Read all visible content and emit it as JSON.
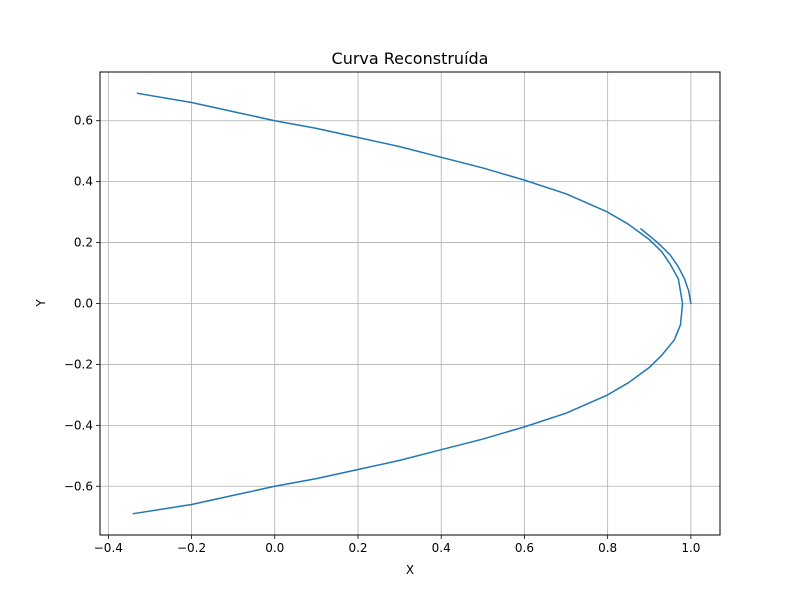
{
  "chart_data": {
    "type": "line",
    "title": "Curva Reconstruída",
    "xlabel": "X",
    "ylabel": "Y",
    "xlim": [
      -0.42,
      1.07
    ],
    "ylim": [
      -0.76,
      0.76
    ],
    "grid": true,
    "x_ticks": [
      -0.4,
      -0.2,
      0.0,
      0.2,
      0.4,
      0.6,
      0.8,
      1.0
    ],
    "x_tick_labels": [
      "−0.4",
      "−0.2",
      "0.0",
      "0.2",
      "0.4",
      "0.6",
      "0.8",
      "1.0"
    ],
    "y_ticks": [
      -0.6,
      -0.4,
      -0.2,
      0.0,
      0.2,
      0.4,
      0.6
    ],
    "y_tick_labels": [
      "−0.6",
      "−0.4",
      "−0.2",
      "0.0",
      "0.2",
      "0.4",
      "0.6"
    ],
    "series": [
      {
        "color": "#1f77b4",
        "x": [
          -0.33,
          -0.2,
          -0.1,
          0.0,
          0.1,
          0.2,
          0.3,
          0.4,
          0.5,
          0.6,
          0.7,
          0.8,
          0.85,
          0.9,
          0.93,
          0.95,
          0.97,
          0.98,
          0.975,
          0.96,
          0.93,
          0.9,
          0.85,
          0.8,
          0.7,
          0.6,
          0.5,
          0.4,
          0.3,
          0.2,
          0.1,
          0.0,
          -0.1,
          -0.2,
          -0.34
        ],
        "y": [
          0.69,
          0.66,
          0.63,
          0.6,
          0.575,
          0.545,
          0.515,
          0.48,
          0.445,
          0.405,
          0.36,
          0.3,
          0.26,
          0.21,
          0.17,
          0.13,
          0.08,
          0.0,
          -0.07,
          -0.12,
          -0.17,
          -0.21,
          -0.26,
          -0.3,
          -0.36,
          -0.405,
          -0.445,
          -0.48,
          -0.515,
          -0.545,
          -0.575,
          -0.6,
          -0.63,
          -0.66,
          -0.69
        ]
      },
      {
        "color": "#1f77b4",
        "x": [
          0.88,
          0.92,
          0.95,
          0.97,
          0.985,
          0.995,
          1.0
        ],
        "y": [
          0.245,
          0.2,
          0.16,
          0.12,
          0.08,
          0.04,
          0.0
        ]
      }
    ]
  }
}
